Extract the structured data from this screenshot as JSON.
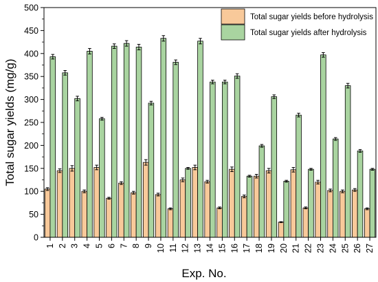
{
  "chart_data": {
    "type": "bar",
    "xlabel": "Exp. No.",
    "ylabel": "Total sugar yields (mg/g)",
    "ylim": [
      0,
      500
    ],
    "yticks": [
      0,
      50,
      100,
      150,
      200,
      250,
      300,
      350,
      400,
      450,
      500
    ],
    "legend_position": "top-right",
    "grid": false,
    "categories": [
      "1",
      "2",
      "3",
      "4",
      "5",
      "6",
      "7",
      "8",
      "9",
      "10",
      "11",
      "12",
      "13",
      "14",
      "15",
      "16",
      "17",
      "18",
      "19",
      "20",
      "21",
      "22",
      "23",
      "24",
      "25",
      "26",
      "27"
    ],
    "series": [
      {
        "name": "Total sugar yields before hydrolysis",
        "color": "#F8C99A",
        "values": [
          105,
          145,
          150,
          100,
          152,
          85,
          118,
          97,
          163,
          93,
          62,
          125,
          152,
          121,
          64,
          148,
          89,
          133,
          145,
          33,
          147,
          64,
          120,
          102,
          100,
          103,
          62
        ],
        "errors": [
          3,
          4,
          6,
          3,
          5,
          2,
          3,
          3,
          6,
          3,
          2,
          4,
          5,
          3,
          2,
          5,
          3,
          4,
          5,
          1,
          5,
          2,
          4,
          3,
          3,
          3,
          2
        ]
      },
      {
        "name": "Total sugar yields after hydrolysis",
        "color": "#A9D4A0",
        "values": [
          393,
          358,
          302,
          405,
          258,
          416,
          422,
          414,
          292,
          433,
          381,
          150,
          427,
          338,
          338,
          351,
          133,
          199,
          306,
          122,
          266,
          148,
          397,
          214,
          330,
          188,
          148
        ],
        "errors": [
          5,
          5,
          5,
          6,
          3,
          5,
          6,
          6,
          4,
          6,
          5,
          2,
          6,
          4,
          4,
          5,
          2,
          3,
          4,
          2,
          4,
          2,
          5,
          3,
          5,
          3,
          2
        ]
      }
    ]
  }
}
